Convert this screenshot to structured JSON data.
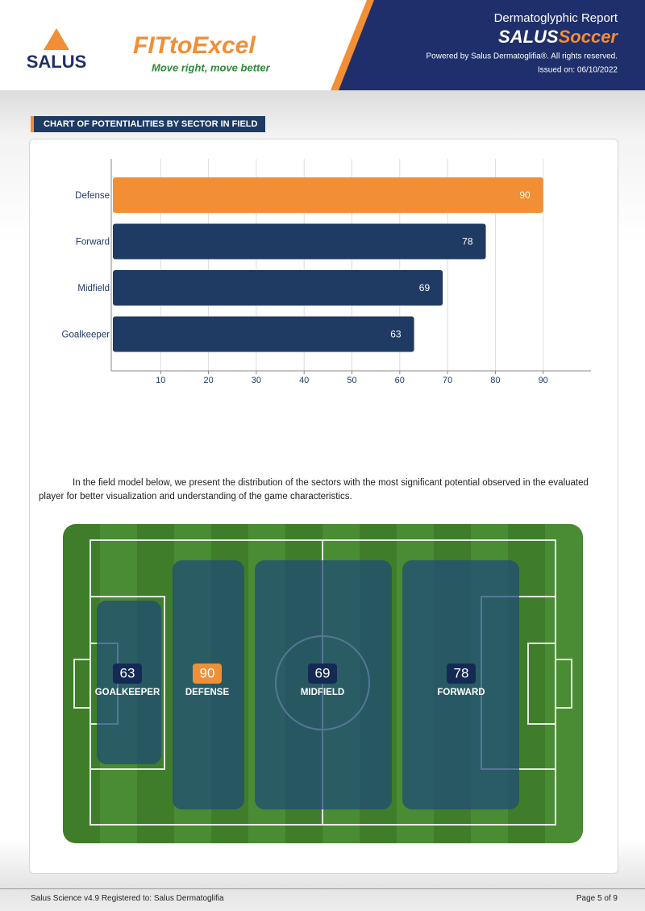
{
  "header": {
    "brand": "SALUS",
    "logo_main": "FITtoExcel",
    "logo_tagline": "Move right, move better",
    "report_title": "Dermatoglyphic Report",
    "product_a": "SALUS",
    "product_b": "Soccer",
    "powered": "Powered by Salus Dermatoglifia®. All rights reserved.",
    "issued": "Issued on: 06/10/2022"
  },
  "section_title": "CHART OF POTENTIALITIES BY SECTOR IN FIELD",
  "chart_data": {
    "type": "bar",
    "orientation": "horizontal",
    "categories": [
      "Defense",
      "Forward",
      "Midfield",
      "Goalkeeper"
    ],
    "values": [
      90,
      78,
      69,
      63
    ],
    "colors": [
      "#f28e35",
      "#1f3b63",
      "#1f3b63",
      "#1f3b63"
    ],
    "xlim": [
      0,
      100
    ],
    "xticks": [
      10,
      20,
      30,
      40,
      50,
      60,
      70,
      80,
      90
    ],
    "grid": true
  },
  "paragraph": "In the field model below, we present the distribution of the sectors with the most significant potential observed in the evaluated player for better visualization and understanding of the game characteristics.",
  "field": {
    "zones": [
      {
        "label": "GOALKEEPER",
        "value": 63
      },
      {
        "label": "DEFENSE",
        "value": 90
      },
      {
        "label": "MIDFIELD",
        "value": 69
      },
      {
        "label": "FORWARD",
        "value": 78
      }
    ]
  },
  "footer": {
    "left": "Salus Science v4.9 Registered to: Salus Dermatoglifia",
    "right": "Page 5 of 9"
  }
}
